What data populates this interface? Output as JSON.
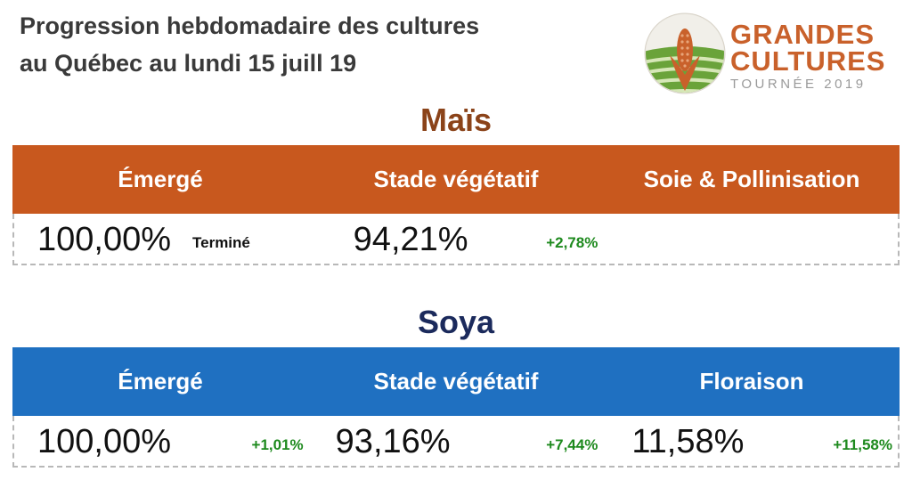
{
  "header": {
    "title_line1": "Progression hebdomadaire des cultures",
    "title_line2": "au Québec au lundi 15 juill 19"
  },
  "logo": {
    "line1": "GRANDES",
    "line2": "CULTURES",
    "line3": "TOURNÉE 2019",
    "colors": {
      "orange": "#c9612b",
      "green": "#6aa33a",
      "gray": "#9a9a9a"
    }
  },
  "mais": {
    "title": "Maïs",
    "colors": {
      "title": "#8b4319",
      "band": "#c8581e"
    },
    "columns": [
      {
        "header": "Émergé",
        "value": "100,00%",
        "note": "Terminé",
        "delta": ""
      },
      {
        "header": "Stade végétatif",
        "value": "94,21%",
        "note": "",
        "delta": "+2,78%"
      },
      {
        "header": "Soie & Pollinisation",
        "value": "",
        "note": "",
        "delta": ""
      }
    ]
  },
  "soya": {
    "title": "Soya",
    "colors": {
      "title": "#1b2a5c",
      "band": "#1f70c1"
    },
    "columns": [
      {
        "header": "Émergé",
        "value": "100,00%",
        "note": "",
        "delta": "+1,01%"
      },
      {
        "header": "Stade végétatif",
        "value": "93,16%",
        "note": "",
        "delta": "+7,44%"
      },
      {
        "header": "Floraison",
        "value": "11,58%",
        "note": "",
        "delta": "+11,58%"
      }
    ]
  },
  "delta_color": "#1e8a1e"
}
